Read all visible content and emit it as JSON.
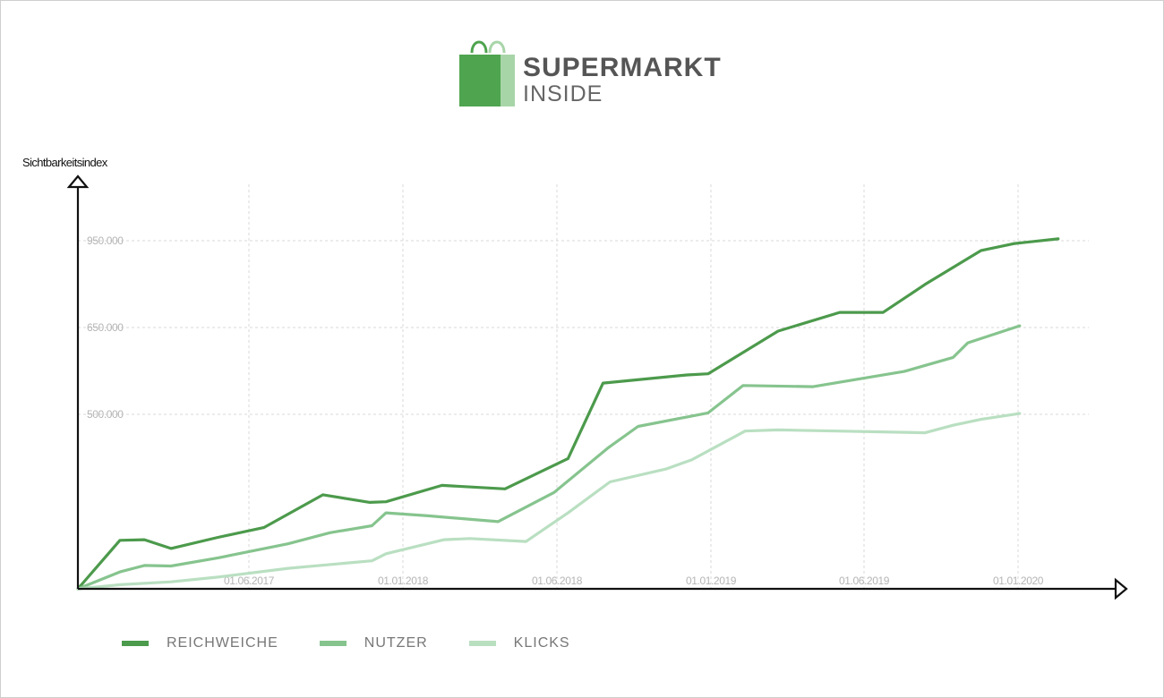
{
  "logo": {
    "line1": "SUPERMARKT",
    "line2": "INSIDE",
    "bag_dark": "#4fa44f",
    "bag_light": "#a8d5a8"
  },
  "chart_data": {
    "type": "line",
    "ylabel": "Sichtbarkeitsindex",
    "xlabel": "",
    "x_ticks": [
      "01.06.2017",
      "01.01.2018",
      "01.06.2018",
      "01.01.2019",
      "01.06.2019",
      "01.01.2020"
    ],
    "y_ticks": [
      "950.000",
      "650.000",
      "500.000"
    ],
    "grid": true,
    "legend_position": "bottom-left",
    "series": [
      {
        "name": "REICHWEICHE",
        "color": "#4c9a4c",
        "points": [
          [
            0,
            0
          ],
          [
            0.06,
            83
          ],
          [
            0.095,
            84
          ],
          [
            0.133,
            69
          ],
          [
            0.2,
            88
          ],
          [
            0.266,
            105
          ],
          [
            0.35,
            161
          ],
          [
            0.417,
            148
          ],
          [
            0.44,
            149
          ],
          [
            0.52,
            177
          ],
          [
            0.61,
            171
          ],
          [
            0.7,
            223
          ],
          [
            0.75,
            352
          ],
          [
            0.87,
            366
          ],
          [
            0.9,
            368
          ],
          [
            1.0,
            441
          ],
          [
            1.088,
            473
          ],
          [
            1.15,
            473
          ],
          [
            1.21,
            521
          ],
          [
            1.29,
            579
          ],
          [
            1.338,
            591
          ],
          [
            1.4,
            599
          ]
        ]
      },
      {
        "name": "NUTZER",
        "color": "#86c48e",
        "points": [
          [
            0,
            0
          ],
          [
            0.06,
            29
          ],
          [
            0.095,
            40
          ],
          [
            0.133,
            39
          ],
          [
            0.2,
            53
          ],
          [
            0.3,
            77
          ],
          [
            0.36,
            96
          ],
          [
            0.42,
            108
          ],
          [
            0.44,
            130
          ],
          [
            0.5,
            125
          ],
          [
            0.6,
            115
          ],
          [
            0.68,
            165
          ],
          [
            0.757,
            241
          ],
          [
            0.8,
            278
          ],
          [
            0.9,
            301
          ],
          [
            0.95,
            348
          ],
          [
            1.05,
            346
          ],
          [
            1.18,
            372
          ],
          [
            1.25,
            396
          ],
          [
            1.271,
            421
          ],
          [
            1.345,
            450
          ]
        ]
      },
      {
        "name": "KLICKS",
        "color": "#b9dfc1",
        "points": [
          [
            0,
            0
          ],
          [
            0.06,
            7
          ],
          [
            0.133,
            12
          ],
          [
            0.2,
            20
          ],
          [
            0.3,
            35
          ],
          [
            0.42,
            48
          ],
          [
            0.44,
            60
          ],
          [
            0.523,
            84
          ],
          [
            0.56,
            86
          ],
          [
            0.64,
            81
          ],
          [
            0.7,
            130
          ],
          [
            0.76,
            183
          ],
          [
            0.84,
            205
          ],
          [
            0.877,
            221
          ],
          [
            0.953,
            270
          ],
          [
            1.0,
            272
          ],
          [
            1.21,
            267
          ],
          [
            1.25,
            280
          ],
          [
            1.29,
            290
          ],
          [
            1.345,
            300
          ]
        ]
      }
    ]
  }
}
